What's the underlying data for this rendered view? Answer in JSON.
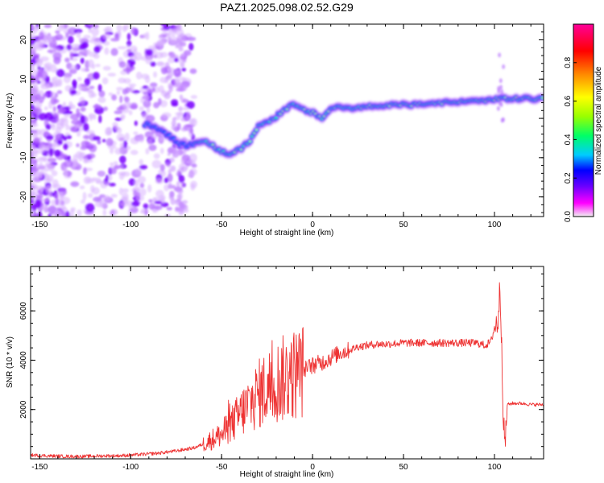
{
  "title": "PAZ1.2025.098.02.52.G29",
  "chart_data": [
    {
      "type": "heatmap",
      "xlabel": "Height of straight line (km)",
      "ylabel": "Frequency (Hz)",
      "xlim": [
        -155,
        127
      ],
      "ylim": [
        -25,
        24
      ],
      "xticks": [
        "-150",
        "-100",
        "-50",
        "0",
        "50",
        "100"
      ],
      "yticks": [
        "20",
        "10",
        "0",
        "-10",
        "-20"
      ],
      "colorbar": {
        "label": "Normalized spectral amplitude",
        "range": [
          0.0,
          1.0
        ],
        "ticks": [
          "0.0",
          "0.2",
          "0.4",
          "0.6",
          "0.8"
        ],
        "colormap": [
          "#f2f2f2",
          "#ff00ff",
          "#6600ff",
          "#0000ff",
          "#00ccff",
          "#00ff66",
          "#99ff00",
          "#ffff00",
          "#ff8800",
          "#ff0000",
          "#ff0099"
        ]
      },
      "ridge": {
        "x": [
          -90,
          -85,
          -80,
          -75,
          -70,
          -65,
          -60,
          -55,
          -50,
          -45,
          -40,
          -35,
          -30,
          -25,
          -20,
          -15,
          -10,
          -5,
          0,
          5,
          10,
          15,
          20,
          25,
          30,
          35,
          40,
          45,
          50,
          55,
          60,
          65,
          70,
          75,
          80,
          85,
          90,
          95,
          100,
          105,
          110,
          115,
          120,
          127
        ],
        "freq": [
          -1.5,
          -2.5,
          -4,
          -6,
          -7,
          -6.5,
          -5.5,
          -7,
          -8.5,
          -9,
          -8,
          -6,
          -2,
          -1,
          0.5,
          2.5,
          3.5,
          2,
          1.5,
          0,
          2.5,
          3,
          2.5,
          2.5,
          3,
          3,
          3.5,
          3.5,
          3.5,
          3.5,
          3.5,
          4,
          4,
          4,
          4,
          4.5,
          4.5,
          4.5,
          5,
          5,
          5,
          5,
          5,
          5
        ]
      }
    },
    {
      "type": "line",
      "xlabel": "Height of straight line (km)",
      "ylabel": "SNR (10 * v/v)",
      "xlim": [
        -155,
        127
      ],
      "ylim": [
        0,
        7800
      ],
      "xticks": [
        "-150",
        "-100",
        "-50",
        "0",
        "50",
        "100"
      ],
      "yticks": [
        "2000",
        "4000",
        "6000"
      ],
      "series": [
        {
          "color": "#ee3333",
          "x": [
            -155,
            -145,
            -135,
            -125,
            -115,
            -105,
            -95,
            -85,
            -75,
            -65,
            -60,
            -55,
            -50,
            -45,
            -40,
            -35,
            -30,
            -25,
            -20,
            -15,
            -10,
            -5,
            0,
            5,
            10,
            15,
            20,
            25,
            30,
            35,
            40,
            50,
            60,
            70,
            80,
            90,
            95,
            98,
            100,
            102,
            103,
            104,
            105,
            106,
            107,
            110,
            115,
            120,
            127
          ],
          "y": [
            150,
            120,
            100,
            100,
            120,
            130,
            170,
            230,
            320,
            450,
            600,
            800,
            1000,
            1350,
            1800,
            2200,
            2600,
            2900,
            3100,
            3300,
            3450,
            3600,
            3800,
            3900,
            4100,
            4300,
            4400,
            4550,
            4600,
            4650,
            4650,
            4700,
            4700,
            4700,
            4700,
            4700,
            4600,
            4750,
            5300,
            5600,
            7000,
            4700,
            1200,
            700,
            2200,
            2250,
            2250,
            2200,
            2200
          ]
        }
      ]
    }
  ]
}
